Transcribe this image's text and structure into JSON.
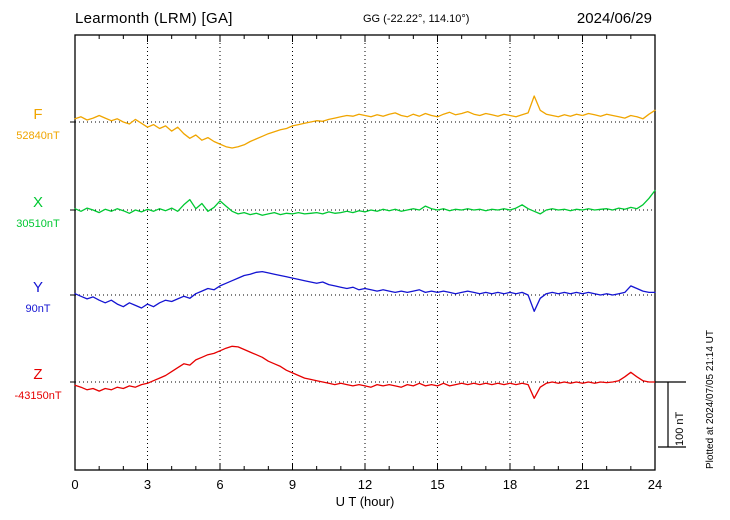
{
  "chart_data": {
    "type": "line",
    "title": "Learmonth (LRM)  [GA]",
    "subtitle": "GG (-22.22°, 114.10°)",
    "date": "2024/06/29",
    "xlabel": "U T (hour)",
    "x_ticks": [
      0,
      3,
      6,
      9,
      12,
      15,
      18,
      21,
      24
    ],
    "x_range": [
      0,
      24
    ],
    "x_step_hours": 0.25,
    "grid": "dotted vertical lines every 3 hours; dotted horizontal baseline per trace",
    "scale_bar": {
      "label": "100 nT",
      "nT": 100
    },
    "plotted_note": "Plotted at 2024/07/05 21:14 UT",
    "series": [
      {
        "name": "F",
        "baseline_label": "52840nT",
        "baseline_value_nT": 52840,
        "color": "#f0a500",
        "offsets_nT": [
          5,
          8,
          3,
          6,
          10,
          6,
          2,
          5,
          0,
          -3,
          4,
          -2,
          -8,
          -4,
          -10,
          -6,
          -14,
          -8,
          -18,
          -25,
          -20,
          -28,
          -24,
          -30,
          -34,
          -38,
          -40,
          -38,
          -35,
          -30,
          -26,
          -22,
          -18,
          -15,
          -12,
          -10,
          -6,
          -4,
          -2,
          0,
          2,
          1,
          4,
          6,
          8,
          10,
          9,
          12,
          10,
          8,
          11,
          9,
          12,
          14,
          10,
          8,
          12,
          9,
          13,
          10,
          8,
          12,
          15,
          11,
          13,
          16,
          12,
          10,
          13,
          11,
          9,
          12,
          10,
          8,
          11,
          14,
          40,
          18,
          12,
          10,
          8,
          11,
          9,
          12,
          10,
          13,
          11,
          9,
          12,
          10,
          8,
          6,
          10,
          8,
          5,
          12,
          18
        ]
      },
      {
        "name": "X",
        "baseline_label": "30510nT",
        "baseline_value_nT": 30510,
        "color": "#00c832",
        "offsets_nT": [
          2,
          -2,
          3,
          0,
          -4,
          1,
          -2,
          2,
          -1,
          -5,
          0,
          -3,
          1,
          -2,
          2,
          -1,
          3,
          -2,
          8,
          16,
          2,
          10,
          -2,
          4,
          14,
          6,
          -2,
          -6,
          -4,
          -7,
          -5,
          -8,
          -6,
          -4,
          -7,
          -5,
          -6,
          -4,
          -6,
          -5,
          -4,
          -6,
          -3,
          -5,
          -4,
          -2,
          -4,
          -1,
          -3,
          0,
          -2,
          1,
          -1,
          1,
          -2,
          0,
          2,
          0,
          6,
          2,
          0,
          2,
          -1,
          1,
          0,
          2,
          0,
          1,
          -1,
          1,
          0,
          2,
          0,
          3,
          8,
          2,
          -2,
          -6,
          0,
          2,
          0,
          1,
          -1,
          1,
          0,
          2,
          0,
          1,
          2,
          0,
          3,
          1,
          4,
          2,
          8,
          18,
          30
        ]
      },
      {
        "name": "Y",
        "baseline_label": "90nT",
        "baseline_value_nT": 90,
        "color": "#1414d2",
        "offsets_nT": [
          2,
          -2,
          -6,
          -3,
          -8,
          -12,
          -8,
          -14,
          -18,
          -12,
          -16,
          -20,
          -14,
          -18,
          -12,
          -8,
          -10,
          -6,
          -2,
          -5,
          2,
          6,
          10,
          8,
          14,
          18,
          22,
          26,
          30,
          32,
          35,
          36,
          34,
          32,
          30,
          28,
          26,
          24,
          22,
          20,
          18,
          20,
          16,
          14,
          12,
          10,
          12,
          8,
          10,
          8,
          6,
          8,
          6,
          4,
          6,
          4,
          6,
          8,
          4,
          6,
          4,
          6,
          4,
          2,
          4,
          6,
          4,
          2,
          4,
          2,
          4,
          2,
          4,
          2,
          4,
          0,
          -25,
          -5,
          2,
          4,
          2,
          4,
          2,
          4,
          2,
          4,
          2,
          0,
          2,
          0,
          2,
          4,
          14,
          10,
          6,
          4,
          4
        ]
      },
      {
        "name": "Z",
        "baseline_label": "-43150nT",
        "baseline_value_nT": -43150,
        "color": "#e60000",
        "offsets_nT": [
          -5,
          -8,
          -12,
          -10,
          -14,
          -10,
          -12,
          -8,
          -10,
          -6,
          -8,
          -4,
          -2,
          2,
          6,
          10,
          16,
          22,
          28,
          26,
          34,
          38,
          42,
          44,
          48,
          52,
          55,
          54,
          50,
          46,
          42,
          38,
          32,
          28,
          24,
          18,
          14,
          10,
          6,
          4,
          2,
          0,
          -2,
          -4,
          -2,
          -4,
          -6,
          -4,
          -6,
          -8,
          -4,
          -6,
          -4,
          -6,
          -8,
          -4,
          -6,
          -2,
          -6,
          -4,
          -6,
          -2,
          -6,
          -4,
          -2,
          -4,
          -2,
          -4,
          -2,
          -4,
          -2,
          -4,
          -2,
          -4,
          -2,
          -4,
          -25,
          -8,
          -2,
          0,
          -2,
          0,
          -2,
          0,
          -2,
          0,
          -2,
          0,
          -1,
          0,
          2,
          8,
          15,
          8,
          2,
          0,
          0
        ]
      }
    ]
  }
}
